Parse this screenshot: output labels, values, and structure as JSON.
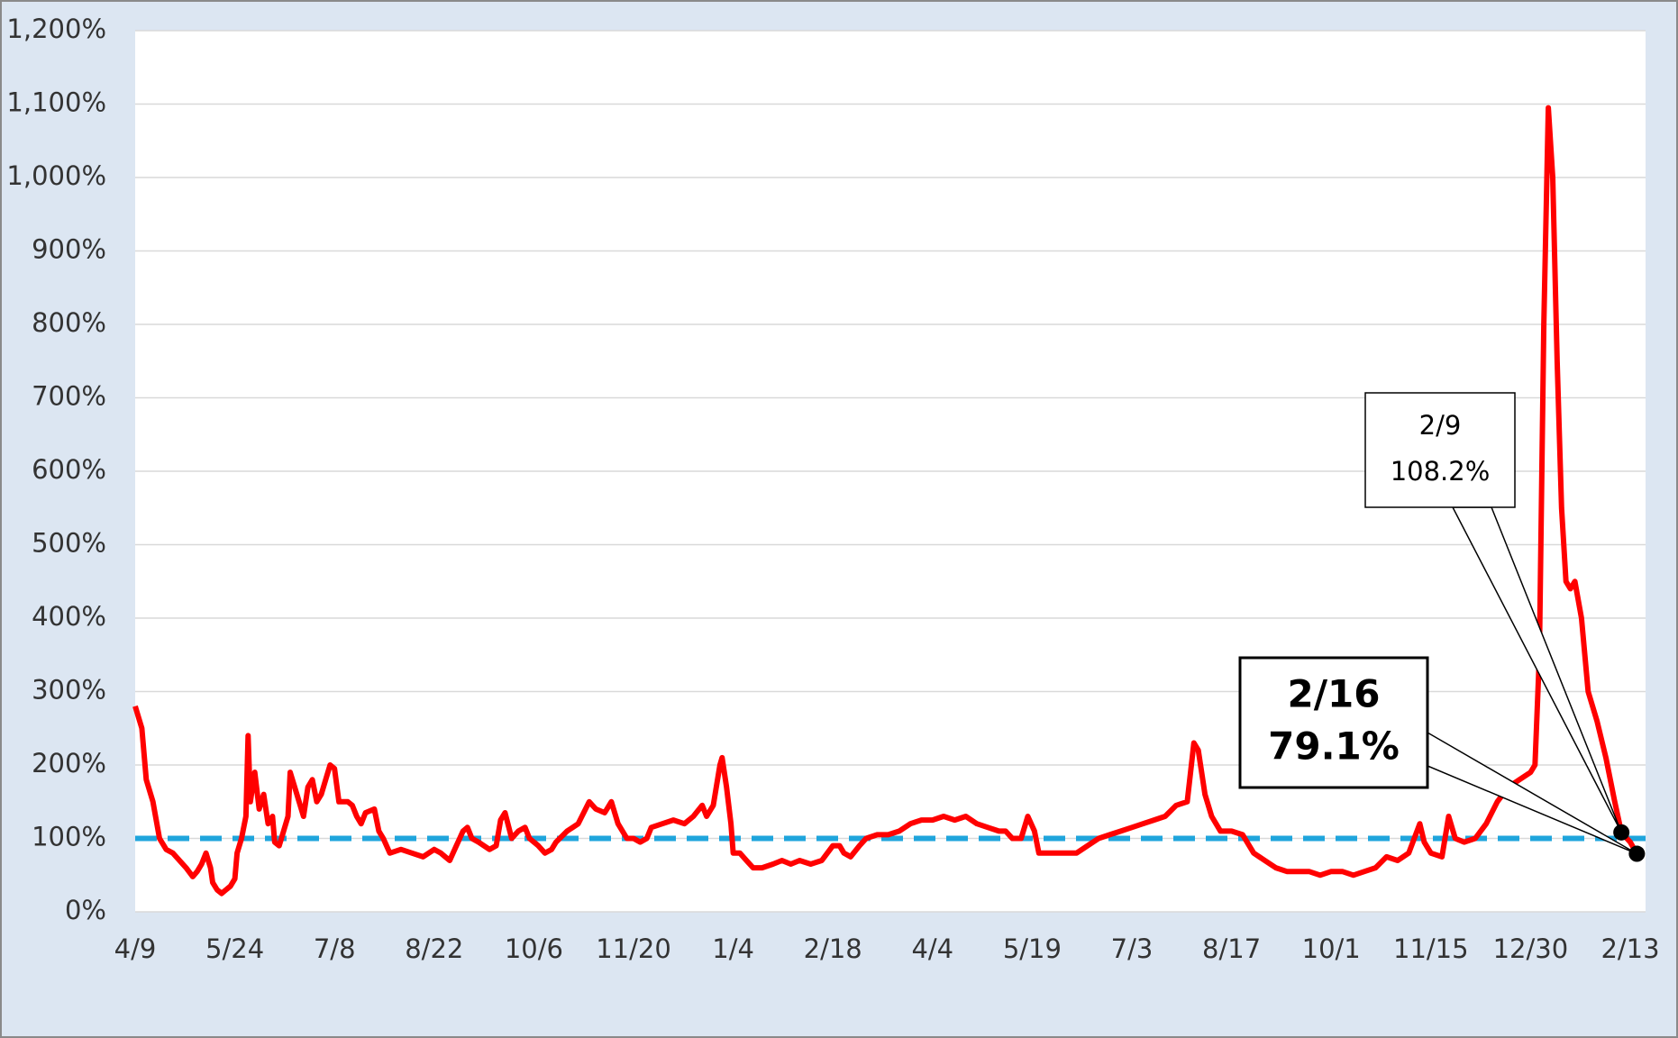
{
  "chart_data": {
    "type": "line",
    "series": [
      {
        "color": "#ff0000",
        "x": [
          "4/9",
          "4/12",
          "4/14",
          "4/17",
          "4/20",
          "4/23",
          "4/26",
          "4/29",
          "5/2",
          "5/5",
          "5/7",
          "5/9",
          "5/11",
          "5/13",
          "5/14",
          "5/16",
          "5/18",
          "5/20",
          "5/22",
          "5/24",
          "5/25",
          "5/27",
          "5/29",
          "5/30",
          "5/31",
          "6/2",
          "6/4",
          "6/6",
          "6/8",
          "6/10",
          "6/11",
          "6/13",
          "6/15",
          "6/17",
          "6/18",
          "6/20",
          "6/22",
          "6/24",
          "6/26",
          "6/28",
          "6/30",
          "7/2",
          "7/4",
          "7/6",
          "7/8",
          "7/10",
          "7/14",
          "7/16",
          "7/18",
          "7/20",
          "7/22",
          "7/26",
          "7/28",
          "7/30",
          "8/2",
          "8/7",
          "8/12",
          "8/17",
          "8/22",
          "8/25",
          "8/27",
          "8/29",
          "9/1",
          "9/4",
          "9/6",
          "9/8",
          "9/11",
          "9/16",
          "9/19",
          "9/21",
          "9/23",
          "9/26",
          "9/29",
          "10/2",
          "10/4",
          "10/8",
          "10/11",
          "10/14",
          "10/16",
          "10/21",
          "10/26",
          "10/31",
          "11/3",
          "11/7",
          "11/10",
          "11/13",
          "11/17",
          "11/20",
          "11/23",
          "11/26",
          "11/28",
          "12/3",
          "12/8",
          "12/13",
          "12/17",
          "12/21",
          "12/23",
          "12/26",
          "12/29",
          "12/30",
          "1/1",
          "1/3",
          "1/4",
          "1/7",
          "1/10",
          "1/13",
          "1/17",
          "1/22",
          "1/26",
          "1/30",
          "2/3",
          "2/8",
          "2/13",
          "2/18",
          "2/21",
          "2/23",
          "2/26",
          "3/2",
          "3/5",
          "3/10",
          "3/15",
          "3/20",
          "3/25",
          "3/30",
          "4/4",
          "4/9",
          "4/14",
          "4/19",
          "4/24",
          "4/29",
          "5/4",
          "5/7",
          "5/10",
          "5/14",
          "5/17",
          "5/20",
          "5/22",
          "5/29",
          "6/3",
          "6/8",
          "6/13",
          "6/18",
          "6/23",
          "6/28",
          "7/3",
          "7/8",
          "7/13",
          "7/18",
          "7/23",
          "7/28",
          "7/31",
          "8/2",
          "8/5",
          "8/8",
          "8/12",
          "8/17",
          "8/22",
          "8/27",
          "9/1",
          "9/6",
          "9/11",
          "9/16",
          "9/21",
          "9/26",
          "10/1",
          "10/6",
          "10/11",
          "10/16",
          "10/21",
          "10/26",
          "10/31",
          "11/5",
          "11/10",
          "11/12",
          "11/15",
          "11/20",
          "11/23",
          "11/26",
          "11/30",
          "12/5",
          "12/10",
          "12/15",
          "12/20",
          "12/25",
          "12/30",
          "1/1",
          "1/3",
          "1/5",
          "1/7",
          "1/9",
          "1/11",
          "1/13",
          "1/15",
          "1/17",
          "1/19",
          "1/22",
          "1/25",
          "1/29",
          "2/2",
          "2/6",
          "2/9",
          "2/13",
          "2/16"
        ],
        "values": [
          280,
          250,
          180,
          150,
          100,
          85,
          80,
          70,
          60,
          48,
          55,
          65,
          80,
          60,
          40,
          30,
          25,
          30,
          35,
          45,
          80,
          100,
          130,
          240,
          150,
          190,
          140,
          160,
          120,
          130,
          95,
          90,
          110,
          130,
          190,
          170,
          150,
          130,
          170,
          180,
          150,
          160,
          180,
          200,
          195,
          150,
          150,
          145,
          130,
          120,
          135,
          140,
          110,
          100,
          80,
          85,
          80,
          75,
          85,
          80,
          75,
          70,
          90,
          110,
          115,
          100,
          95,
          85,
          90,
          125,
          135,
          100,
          110,
          115,
          100,
          90,
          80,
          85,
          95,
          110,
          120,
          150,
          140,
          135,
          150,
          120,
          100,
          100,
          95,
          100,
          115,
          120,
          125,
          120,
          130,
          145,
          130,
          145,
          200,
          210,
          170,
          120,
          80,
          80,
          70,
          60,
          60,
          65,
          70,
          65,
          70,
          65,
          70,
          90,
          90,
          80,
          75,
          90,
          100,
          105,
          105,
          110,
          120,
          125,
          125,
          130,
          125,
          130,
          120,
          115,
          110,
          110,
          100,
          100,
          130,
          110,
          80,
          80,
          80,
          80,
          90,
          100,
          105,
          110,
          115,
          120,
          125,
          130,
          145,
          150,
          230,
          220,
          160,
          130,
          110,
          110,
          105,
          80,
          70,
          60,
          55,
          55,
          55,
          50,
          55,
          55,
          50,
          55,
          60,
          75,
          70,
          80,
          120,
          95,
          80,
          75,
          130,
          100,
          95,
          100,
          120,
          150,
          170,
          180,
          190,
          200,
          350,
          800,
          1095,
          1000,
          750,
          550,
          450,
          440,
          450,
          400,
          300,
          260,
          210,
          150,
          108.2,
          95,
          79.1
        ]
      }
    ],
    "reference_line": {
      "value": 100,
      "color": "#1fa5dc"
    },
    "annotations": [
      {
        "date": "2/9",
        "label": "108.2%",
        "value": 108.2
      },
      {
        "date": "2/16",
        "label": "79.1%",
        "value": 79.1
      }
    ],
    "xticks": [
      "4/9",
      "5/24",
      "7/8",
      "8/22",
      "10/6",
      "11/20",
      "1/4",
      "2/18",
      "4/4",
      "5/19",
      "7/3",
      "8/17",
      "10/1",
      "11/15",
      "12/30",
      "2/13"
    ],
    "ylim": [
      0,
      1200
    ],
    "yticks": [
      {
        "value": 0,
        "label": "0%"
      },
      {
        "value": 100,
        "label": "100%"
      },
      {
        "value": 200,
        "label": "200%"
      },
      {
        "value": 300,
        "label": "300%"
      },
      {
        "value": 400,
        "label": "400%"
      },
      {
        "value": 500,
        "label": "500%"
      },
      {
        "value": 600,
        "label": "600%"
      },
      {
        "value": 700,
        "label": "700%"
      },
      {
        "value": 800,
        "label": "800%"
      },
      {
        "value": 900,
        "label": "900%"
      },
      {
        "value": 1000,
        "label": "1,000%"
      },
      {
        "value": 1100,
        "label": "1,100%"
      },
      {
        "value": 1200,
        "label": "1,200%"
      }
    ],
    "grid": true
  }
}
